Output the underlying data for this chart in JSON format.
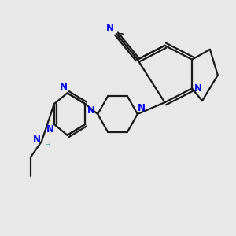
{
  "bg_color": "#e8e8e8",
  "bond_color": "#1a1a1a",
  "nitrogen_color": "#0000ee",
  "h_color": "#5f9ea0",
  "line_width": 1.6,
  "figure_size": [
    3.0,
    3.0
  ],
  "dpi": 100,
  "xlim": [
    0,
    300
  ],
  "ylim": [
    0,
    300
  ]
}
